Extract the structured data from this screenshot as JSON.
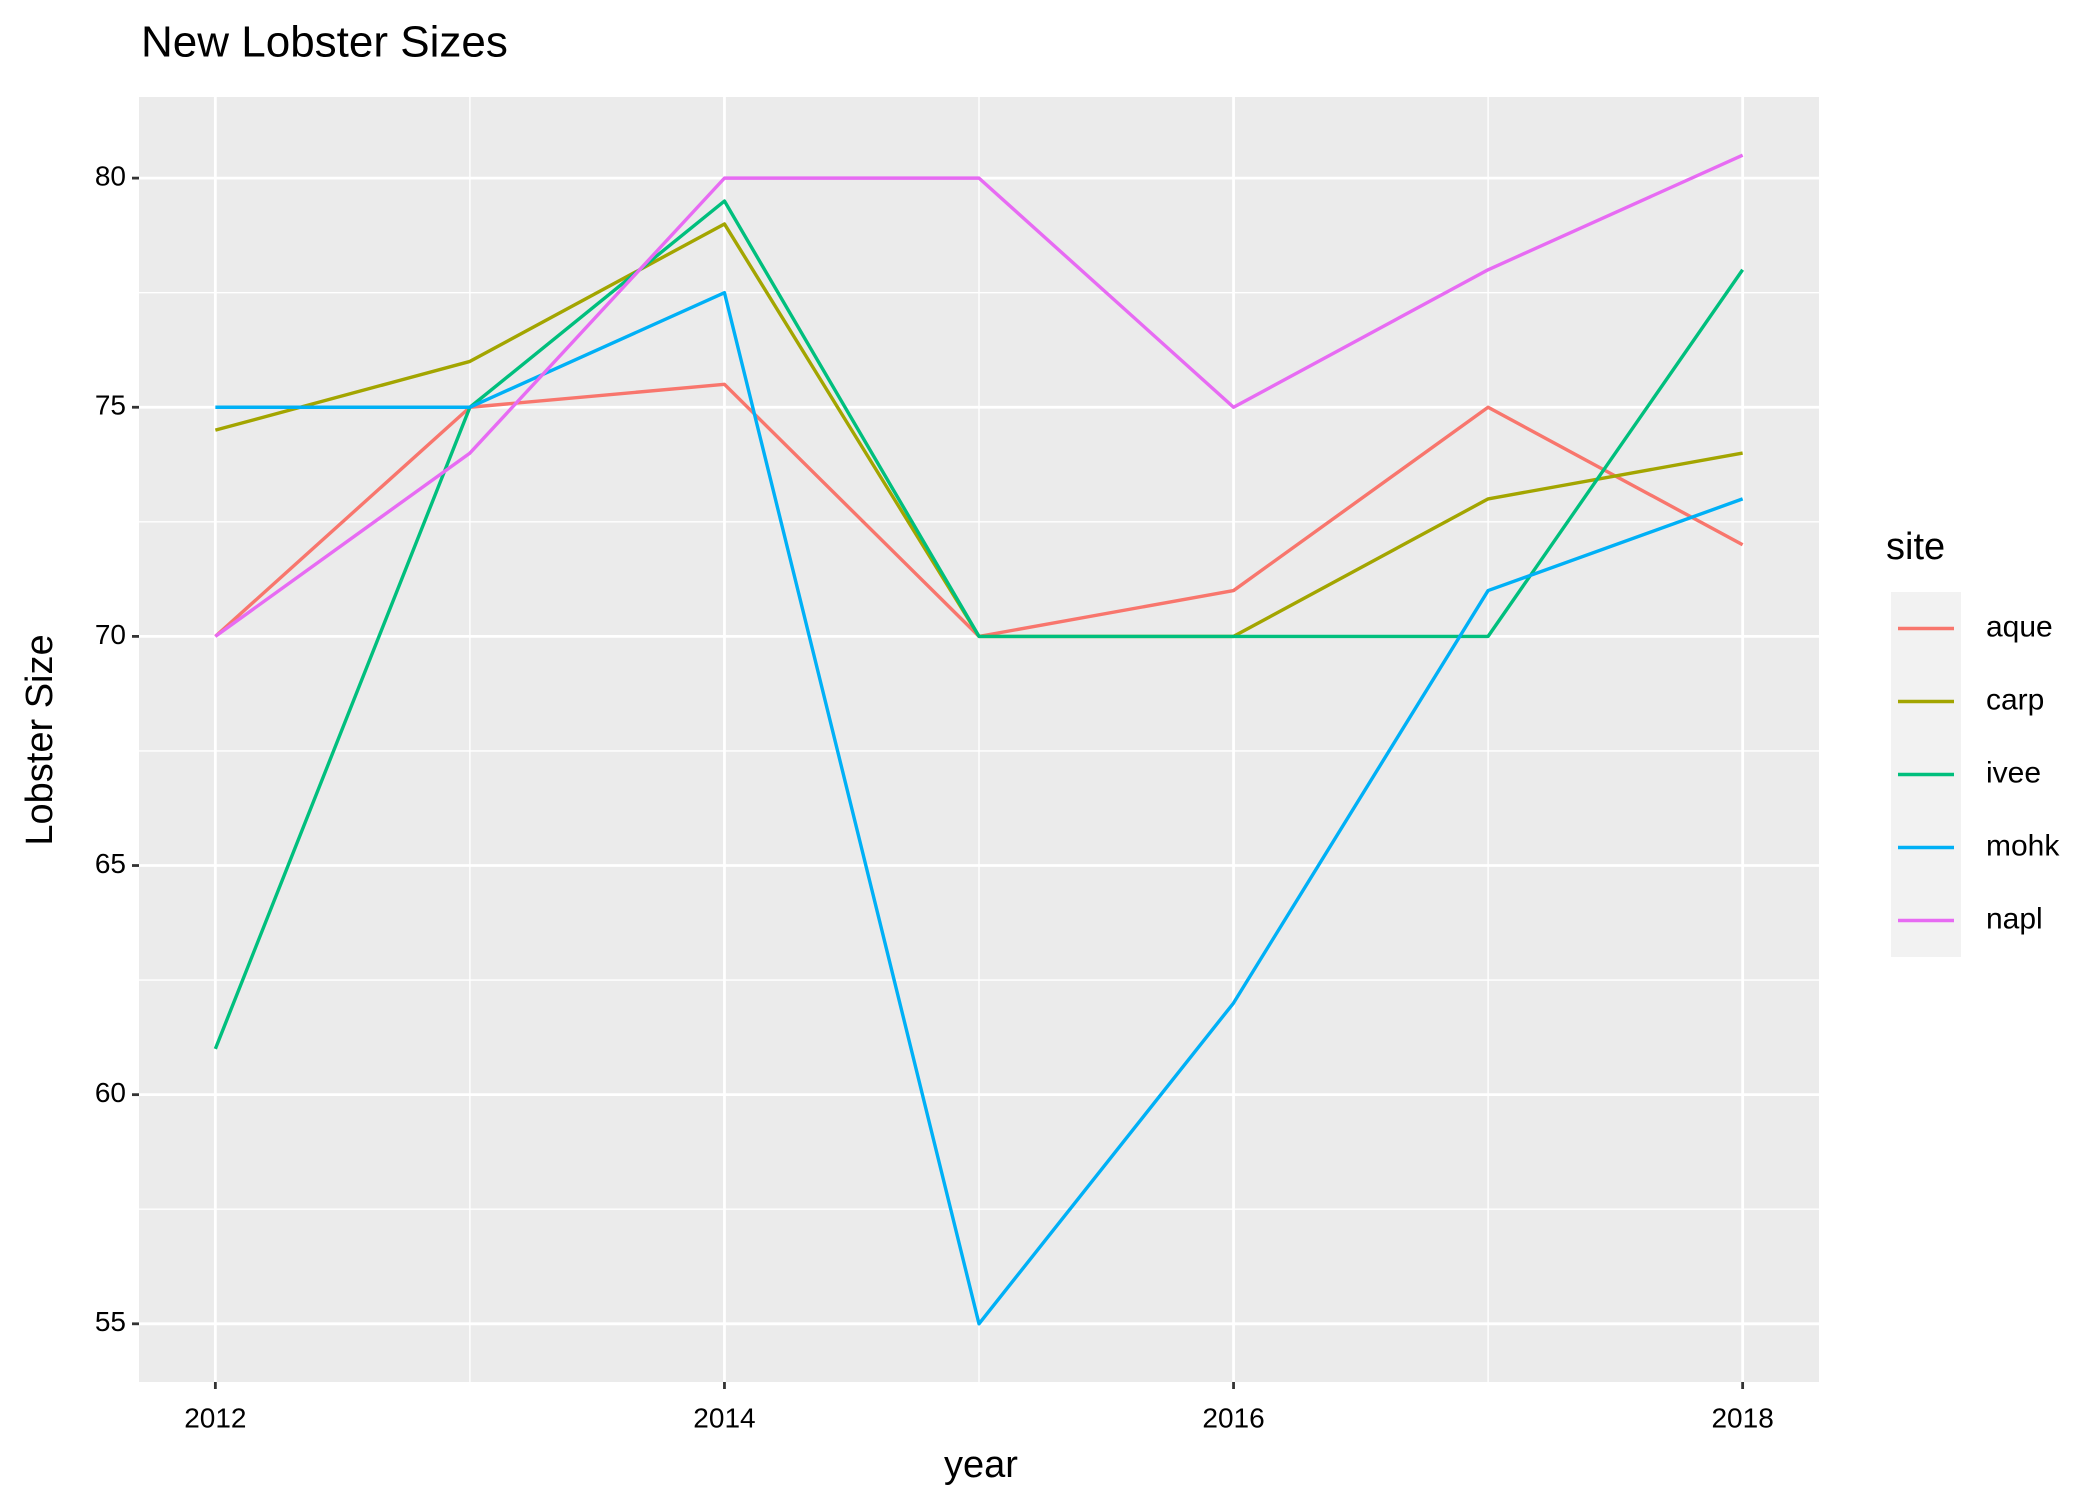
{
  "chart_data": {
    "type": "line",
    "title": "New Lobster Sizes",
    "x_label": "year",
    "y_label": "Lobster Size",
    "legend_title": "site",
    "x": [
      2012,
      2013,
      2014,
      2015,
      2016,
      2017,
      2018
    ],
    "series": [
      {
        "name": "aque",
        "color": "#F8766D",
        "values": [
          70,
          75,
          75.5,
          70,
          71,
          75,
          72
        ]
      },
      {
        "name": "carp",
        "color": "#A3A500",
        "values": [
          74.5,
          76,
          79,
          70,
          70,
          73,
          74
        ]
      },
      {
        "name": "ivee",
        "color": "#00BF7D",
        "values": [
          61,
          75,
          79.5,
          70,
          70,
          70,
          78
        ]
      },
      {
        "name": "mohk",
        "color": "#00B0F6",
        "values": [
          75,
          75,
          77.5,
          55,
          62,
          71,
          73
        ]
      },
      {
        "name": "napl",
        "color": "#E76BF3",
        "values": [
          70,
          74,
          80,
          80,
          75,
          78,
          80.5
        ]
      }
    ],
    "xlim": [
      2011.7,
      2018.3
    ],
    "xticks": [
      2012,
      2014,
      2016,
      2018
    ],
    "ylim": [
      53.73,
      81.77
    ],
    "yticks": [
      55,
      60,
      65,
      70,
      75,
      80
    ],
    "grid": true,
    "legend": "right"
  }
}
